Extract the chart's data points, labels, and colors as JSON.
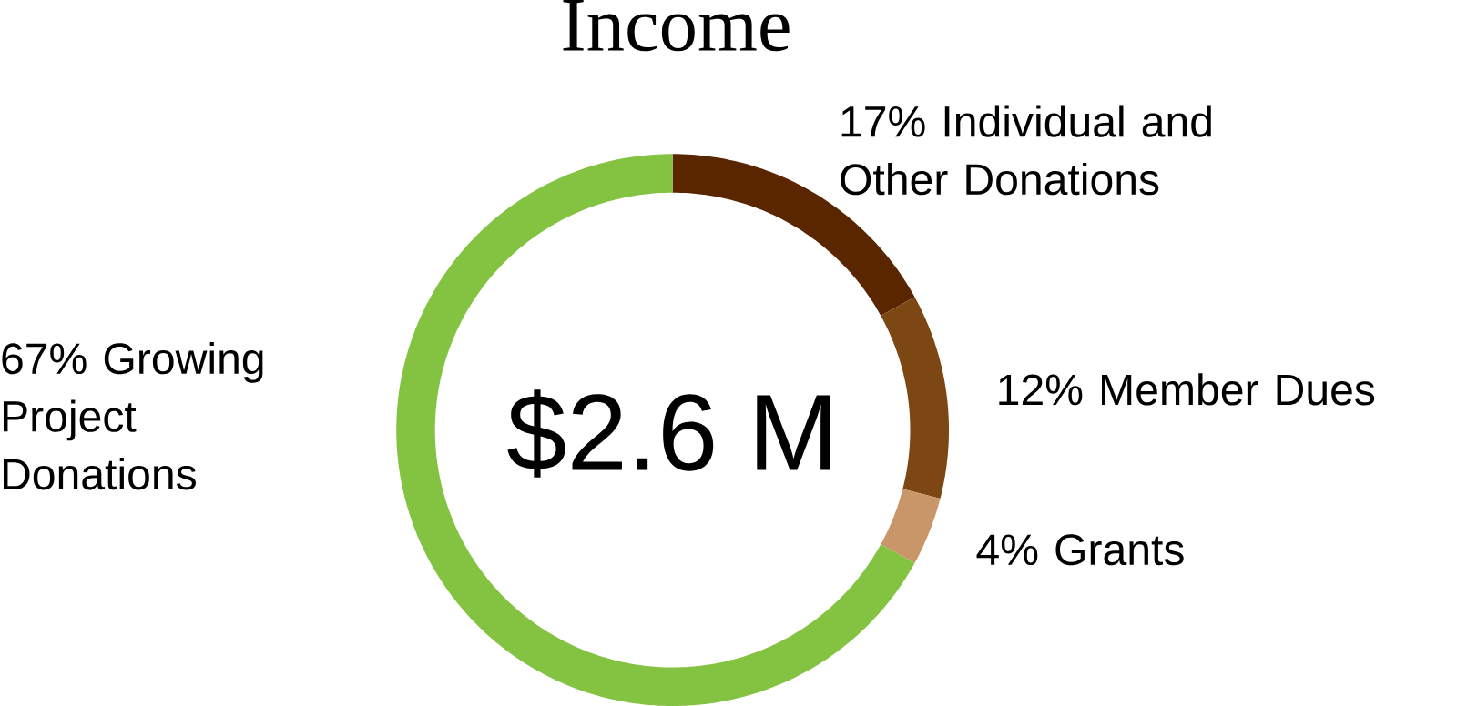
{
  "chart_data": {
    "type": "donut",
    "title": "Income",
    "categories": [
      "Individual and Other Donations",
      "Member Dues",
      "Grants",
      "Growing Project Donations"
    ],
    "values": [
      17,
      12,
      4,
      67
    ],
    "value_labels": [
      "17%",
      "12%",
      "4%",
      "67%"
    ],
    "colors": [
      "#5a2600",
      "#7c4713",
      "#c9966a",
      "#83c341"
    ],
    "annotations": [
      "$2.6 M"
    ]
  }
}
